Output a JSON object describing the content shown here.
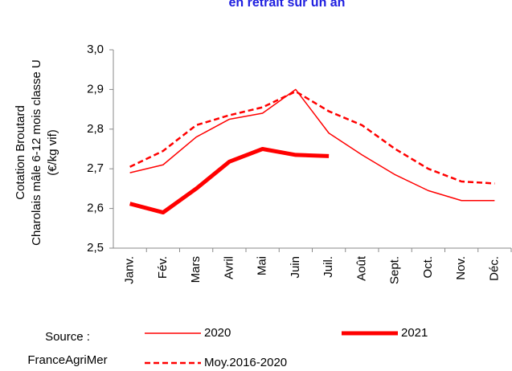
{
  "chart_data": {
    "type": "line",
    "title": "en retrait sur un an",
    "y_label": [
      "Cotation Broutard",
      "Charolais mâle 6-12 mois classe U",
      "(€/kg vif)"
    ],
    "source": [
      "Source :",
      "FranceAgriMer"
    ],
    "categories": [
      "Janv.",
      "Fév.",
      "Mars",
      "Avril",
      "Mai",
      "Juin",
      "Juil.",
      "Août",
      "Sept.",
      "Oct.",
      "Nov.",
      "Déc."
    ],
    "series": [
      {
        "name": "2020",
        "color": "#ff0000",
        "line_width": 1.5,
        "dashed": false,
        "values": [
          2.69,
          2.71,
          2.78,
          2.825,
          2.84,
          2.9,
          2.79,
          2.735,
          2.685,
          2.645,
          2.62,
          2.62
        ]
      },
      {
        "name": "2021",
        "color": "#ff0000",
        "line_width": 5,
        "dashed": false,
        "values": [
          2.612,
          2.59,
          2.65,
          2.718,
          2.75,
          2.735,
          2.732,
          null,
          null,
          null,
          null,
          null
        ]
      },
      {
        "name": "Moy.2016-2020",
        "color": "#ff0000",
        "line_width": 2.5,
        "dashed": true,
        "values": [
          2.705,
          2.745,
          2.81,
          2.835,
          2.855,
          2.895,
          2.845,
          2.81,
          2.75,
          2.7,
          2.668,
          2.663
        ]
      }
    ],
    "ylim": [
      2.5,
      3.0
    ],
    "yticks": [
      {
        "value": 2.5,
        "label": "2,5"
      },
      {
        "value": 2.6,
        "label": "2,6"
      },
      {
        "value": 2.7,
        "label": "2,7"
      },
      {
        "value": 2.8,
        "label": "2,8"
      },
      {
        "value": 2.9,
        "label": "2,9"
      },
      {
        "value": 3.0,
        "label": "3,0"
      }
    ],
    "grid": false
  }
}
